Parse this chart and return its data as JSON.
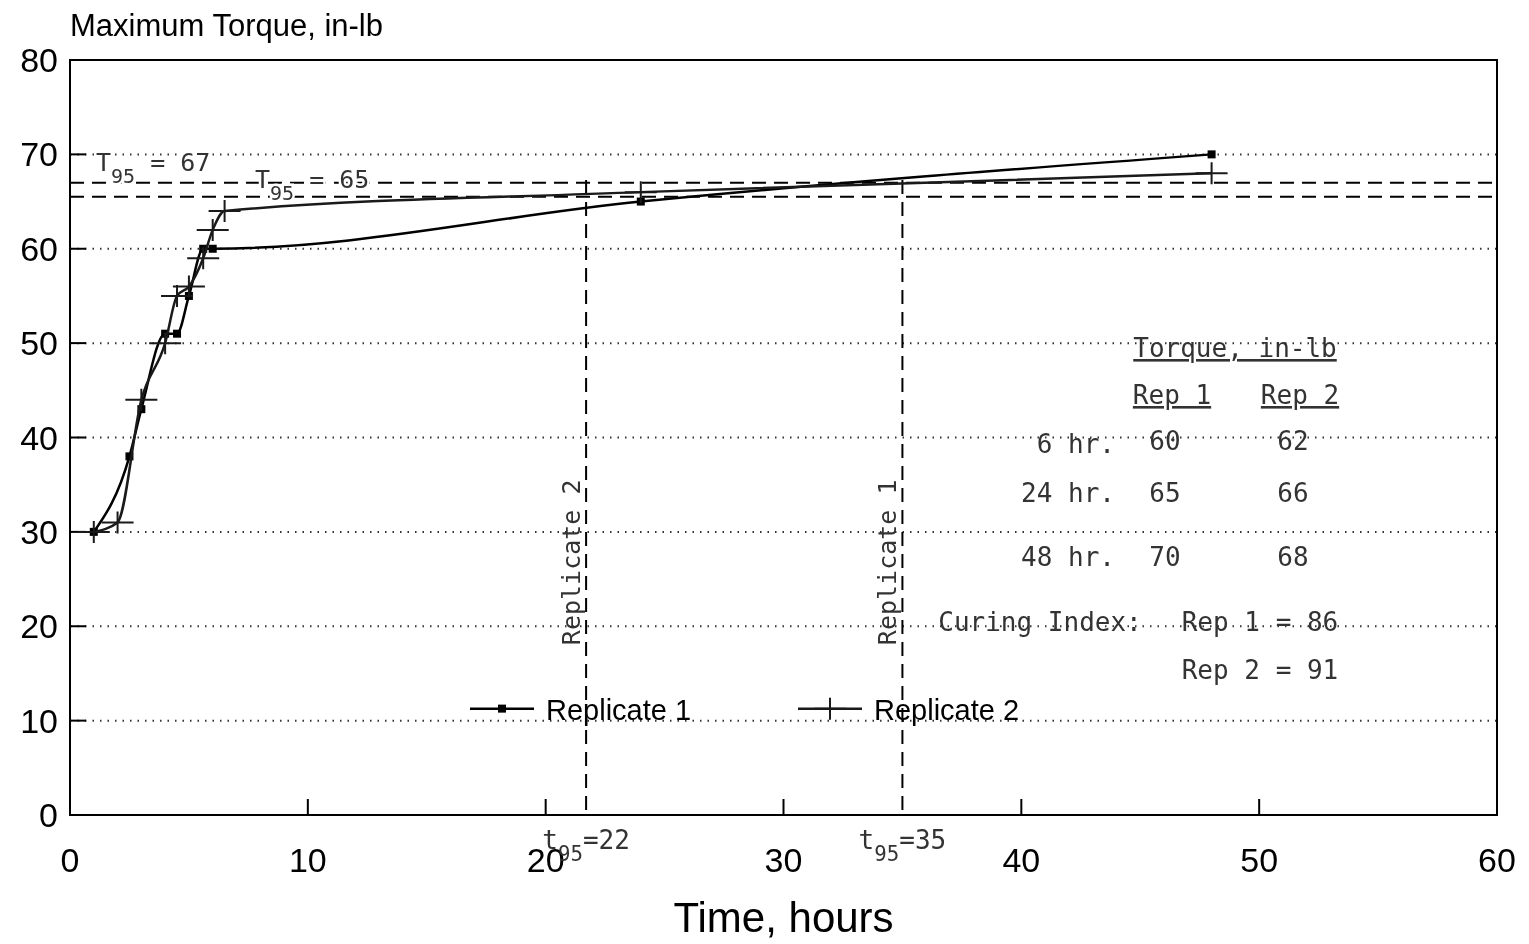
{
  "chart_data": {
    "type": "line",
    "ylabel": "Maximum Torque, in-lb",
    "xlabel": "Time, hours",
    "x": [
      1,
      2.5,
      3,
      4,
      4.5,
      5,
      5.6,
      6,
      24,
      48
    ],
    "series": [
      {
        "name": "Replicate 1",
        "color": "#000000",
        "marker": "square",
        "values": [
          30,
          38,
          43,
          51,
          51,
          55,
          60,
          60,
          65,
          70
        ]
      },
      {
        "name": "Replicate 2",
        "color": "#1a1a1a",
        "marker": "cross",
        "x": [
          1,
          2,
          3,
          4,
          4.5,
          5,
          5.6,
          6,
          6.5,
          24,
          48
        ],
        "values": [
          30,
          31,
          44,
          50,
          55,
          56,
          59,
          62,
          64,
          66,
          68
        ]
      }
    ],
    "xlim": [
      0,
      60
    ],
    "xticks": [
      0,
      10,
      20,
      30,
      40,
      50,
      60
    ],
    "ylim": [
      0,
      80
    ],
    "yticks": [
      0,
      10,
      20,
      30,
      40,
      50,
      60,
      70,
      80
    ],
    "grid": "y",
    "legend": "bottom",
    "line_style": "solid",
    "ref_lines": [
      {
        "axis": "y",
        "value": 67,
        "label": "T$_{95}$ = 67",
        "line_style": "dashed"
      },
      {
        "axis": "y",
        "value": 65.5,
        "label": "T$_{95}$ = 65",
        "line_style": "dashed"
      },
      {
        "axis": "x",
        "value": 21.7,
        "label": "Replicate 2",
        "line_style": "dashed"
      },
      {
        "axis": "x",
        "value": 35,
        "label": "Replicate 1",
        "line_style": "dashed"
      }
    ],
    "annotations": [
      {
        "text": "t$_{95}$=22",
        "x": 21.7,
        "y": 0
      },
      {
        "text": "t$_{95}$=35",
        "x": 35,
        "y": 0
      },
      "Torque, in-lb",
      "Rep 1",
      "Rep 2",
      "6 hr.",
      "60",
      "62",
      "24 hr.",
      "65",
      "66",
      "48 hr.",
      "70",
      "68",
      "Curing Index:",
      "Rep 1 = 86",
      "Rep 2 = 91"
    ]
  }
}
